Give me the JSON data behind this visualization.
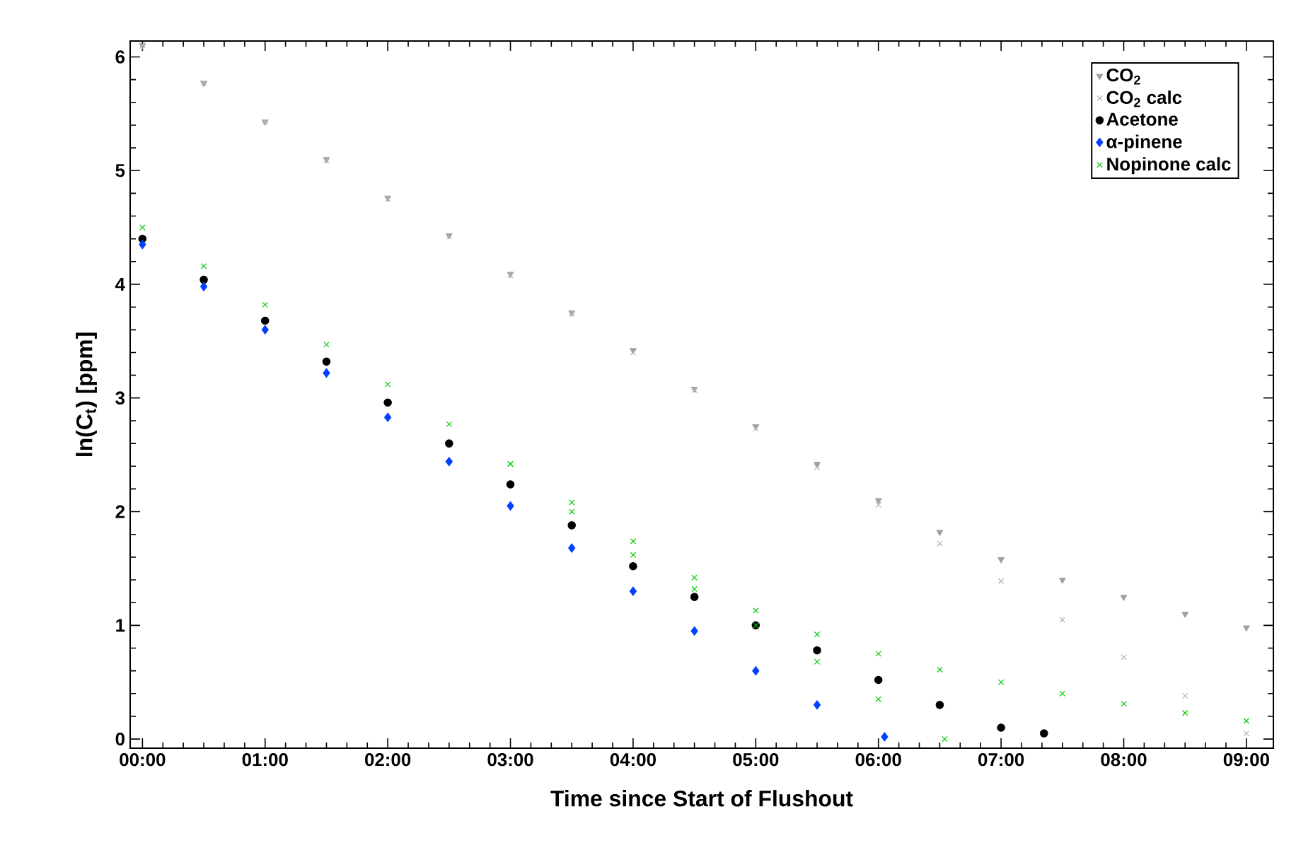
{
  "chart_data": {
    "type": "scatter",
    "xlabel": "Time since Start of Flushout",
    "ylabel": "ln(C$_{t}$) [ppm]",
    "xlim": [
      -0.1,
      9.22
    ],
    "ylim": [
      -0.08,
      6.14
    ],
    "xticks": [
      {
        "value": 0,
        "label": "00:00"
      },
      {
        "value": 1,
        "label": "01:00"
      },
      {
        "value": 2,
        "label": "02:00"
      },
      {
        "value": 3,
        "label": "03:00"
      },
      {
        "value": 4,
        "label": "04:00"
      },
      {
        "value": 5,
        "label": "05:00"
      },
      {
        "value": 6,
        "label": "06:00"
      },
      {
        "value": 7,
        "label": "07:00"
      },
      {
        "value": 8,
        "label": "08:00"
      },
      {
        "value": 9,
        "label": "09:00"
      }
    ],
    "yticks": [
      0,
      1,
      2,
      3,
      4,
      5,
      6
    ],
    "grid": false,
    "legend": "top right",
    "series": [
      {
        "name": "CO$_{2}$",
        "color": "#a0a0a0",
        "marker": "triangle",
        "x": [
          0,
          0.5,
          1,
          1.5,
          2,
          2.5,
          3,
          3.5,
          4,
          4.5,
          5,
          5.5,
          6,
          6.5,
          7,
          7.5,
          8,
          8.5,
          9
        ],
        "values": [
          6.1,
          5.77,
          5.43,
          5.1,
          4.76,
          4.43,
          4.09,
          3.75,
          3.42,
          3.08,
          2.75,
          2.42,
          2.1,
          1.82,
          1.58,
          1.4,
          1.25,
          1.1,
          0.98
        ]
      },
      {
        "name": "CO$_{2}$ calc",
        "color": "#b4b4b4",
        "marker": "cross",
        "x": [
          0,
          0.5,
          1,
          1.5,
          2,
          2.5,
          3,
          3.5,
          4,
          4.5,
          5,
          5.5,
          6,
          6.5,
          7,
          7.5,
          8,
          8.5,
          9
        ],
        "values": [
          6.1,
          5.77,
          5.43,
          5.09,
          4.75,
          4.42,
          4.08,
          3.74,
          3.4,
          3.07,
          2.73,
          2.39,
          2.06,
          1.72,
          1.39,
          1.05,
          0.72,
          0.38,
          0.05
        ]
      },
      {
        "name": "Acetone",
        "color": "#000000",
        "marker": "circle",
        "x": [
          0,
          0.5,
          1,
          1.5,
          2,
          2.5,
          3,
          3.5,
          4,
          4.5,
          5,
          5.5,
          6,
          6.5,
          7,
          7.35
        ],
        "values": [
          4.4,
          4.04,
          3.68,
          3.32,
          2.96,
          2.6,
          2.24,
          1.88,
          1.52,
          1.25,
          1.0,
          0.78,
          0.52,
          0.3,
          0.1,
          0.05
        ]
      },
      {
        "name": "α-pinene",
        "color": "#0040ff",
        "marker": "diamond",
        "x": [
          0,
          0.5,
          1,
          1.5,
          2,
          2.5,
          3,
          3.5,
          4,
          4.5,
          5,
          5.5,
          6.05
        ],
        "values": [
          4.35,
          3.98,
          3.6,
          3.22,
          2.83,
          2.44,
          2.05,
          1.68,
          1.3,
          0.95,
          0.6,
          0.3,
          0.02
        ]
      },
      {
        "name": "Nopinone calc",
        "color": "#00cc00",
        "marker": "cross",
        "x": [
          0,
          0.5,
          1,
          1.5,
          2,
          2.5,
          3,
          3.5,
          4,
          4.5,
          5,
          5.5,
          6,
          6.5,
          7,
          7.5,
          8,
          8.5,
          9
        ],
        "values": [
          4.5,
          4.16,
          3.82,
          3.47,
          3.12,
          2.77,
          2.42,
          2.08,
          1.74,
          1.42,
          1.13,
          0.92,
          0.75,
          0.61,
          0.5,
          0.4,
          0.31,
          0.23,
          0.16
        ]
      },
      {
        "color": "#00cc00",
        "marker": "cross",
        "x": [
          3,
          3.5,
          4,
          4.5,
          5,
          5.5,
          6,
          6.54
        ],
        "values": [
          2.42,
          2.0,
          1.62,
          1.32,
          1.0,
          0.68,
          0.35,
          0.0
        ]
      }
    ]
  }
}
